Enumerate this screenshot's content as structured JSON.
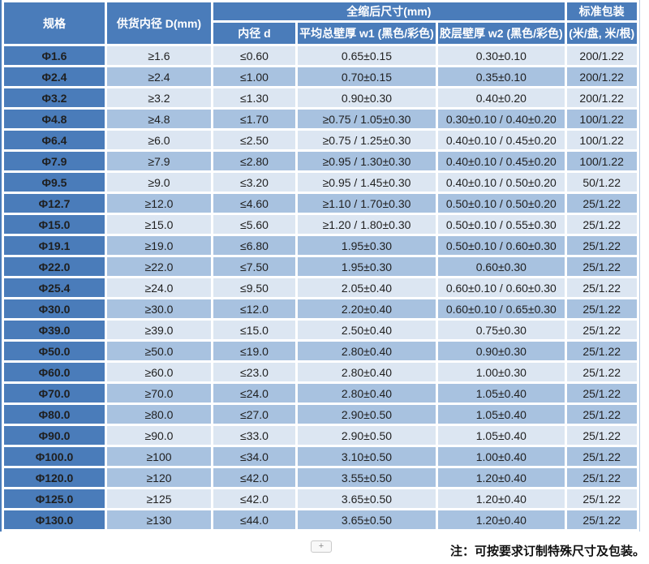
{
  "colors": {
    "header_blue": "#4a7cba",
    "spec_column_blue": "#4a7cba",
    "row_light": "#dce6f2",
    "row_medium": "#a8c2e0",
    "header_text": "#ffffff",
    "data_text": "#1f1f1f"
  },
  "table": {
    "headers": {
      "spec": "规格",
      "supply_diameter": "供货内径 D(mm)",
      "shrunk_group": "全缩后尺寸(mm)",
      "inner_diameter": "内径 d",
      "avg_wall": "平均总壁厚 w1 (黑色/彩色)",
      "adhesive_wall": "胶层壁厚 w2 (黑色/彩色)",
      "packaging": "标准包装",
      "packaging_unit": "(米/盘, 米/根)"
    },
    "rows": [
      {
        "spec": "Φ1.6",
        "supply": "≥1.6",
        "inner": "≤0.60",
        "wall_w1": "0.65±0.15",
        "wall_w2": "0.30±0.10",
        "packaging": "200/1.22",
        "shade": "light"
      },
      {
        "spec": "Φ2.4",
        "supply": "≥2.4",
        "inner": "≤1.00",
        "wall_w1": "0.70±0.15",
        "wall_w2": "0.35±0.10",
        "packaging": "200/1.22",
        "shade": "medium"
      },
      {
        "spec": "Φ3.2",
        "supply": "≥3.2",
        "inner": "≤1.30",
        "wall_w1": "0.90±0.30",
        "wall_w2": "0.40±0.20",
        "packaging": "200/1.22",
        "shade": "light"
      },
      {
        "spec": "Φ4.8",
        "supply": "≥4.8",
        "inner": "≤1.70",
        "wall_w1": "≥0.75 / 1.05±0.30",
        "wall_w2": "0.30±0.10 / 0.40±0.20",
        "packaging": "100/1.22",
        "shade": "medium"
      },
      {
        "spec": "Φ6.4",
        "supply": "≥6.0",
        "inner": "≤2.50",
        "wall_w1": "≥0.75 / 1.25±0.30",
        "wall_w2": "0.40±0.10 / 0.45±0.20",
        "packaging": "100/1.22",
        "shade": "light"
      },
      {
        "spec": "Φ7.9",
        "supply": "≥7.9",
        "inner": "≤2.80",
        "wall_w1": "≥0.95 / 1.30±0.30",
        "wall_w2": "0.40±0.10 / 0.45±0.20",
        "packaging": "100/1.22",
        "shade": "medium"
      },
      {
        "spec": "Φ9.5",
        "supply": "≥9.0",
        "inner": "≤3.20",
        "wall_w1": "≥0.95 / 1.45±0.30",
        "wall_w2": "0.40±0.10 / 0.50±0.20",
        "packaging": "50/1.22",
        "shade": "light"
      },
      {
        "spec": "Φ12.7",
        "supply": "≥12.0",
        "inner": "≤4.60",
        "wall_w1": "≥1.10 / 1.70±0.30",
        "wall_w2": "0.50±0.10 / 0.50±0.20",
        "packaging": "25/1.22",
        "shade": "medium"
      },
      {
        "spec": "Φ15.0",
        "supply": "≥15.0",
        "inner": "≤5.60",
        "wall_w1": "≥1.20 / 1.80±0.30",
        "wall_w2": "0.50±0.10 / 0.55±0.30",
        "packaging": "25/1.22",
        "shade": "light"
      },
      {
        "spec": "Φ19.1",
        "supply": "≥19.0",
        "inner": "≤6.80",
        "wall_w1": "1.95±0.30",
        "wall_w2": "0.50±0.10 / 0.60±0.30",
        "packaging": "25/1.22",
        "shade": "medium"
      },
      {
        "spec": "Φ22.0",
        "supply": "≥22.0",
        "inner": "≤7.50",
        "wall_w1": "1.95±0.30",
        "wall_w2": "0.60±0.30",
        "packaging": "25/1.22",
        "shade": "medium"
      },
      {
        "spec": "Φ25.4",
        "supply": "≥24.0",
        "inner": "≤9.50",
        "wall_w1": "2.05±0.40",
        "wall_w2": "0.60±0.10 / 0.60±0.30",
        "packaging": "25/1.22",
        "shade": "light"
      },
      {
        "spec": "Φ30.0",
        "supply": "≥30.0",
        "inner": "≤12.0",
        "wall_w1": "2.20±0.40",
        "wall_w2": "0.60±0.10 / 0.65±0.30",
        "packaging": "25/1.22",
        "shade": "medium"
      },
      {
        "spec": "Φ39.0",
        "supply": "≥39.0",
        "inner": "≤15.0",
        "wall_w1": "2.50±0.40",
        "wall_w2": "0.75±0.30",
        "packaging": "25/1.22",
        "shade": "light"
      },
      {
        "spec": "Φ50.0",
        "supply": "≥50.0",
        "inner": "≤19.0",
        "wall_w1": "2.80±0.40",
        "wall_w2": "0.90±0.30",
        "packaging": "25/1.22",
        "shade": "medium"
      },
      {
        "spec": "Φ60.0",
        "supply": "≥60.0",
        "inner": "≤23.0",
        "wall_w1": "2.80±0.40",
        "wall_w2": "1.00±0.30",
        "packaging": "25/1.22",
        "shade": "light"
      },
      {
        "spec": "Φ70.0",
        "supply": "≥70.0",
        "inner": "≤24.0",
        "wall_w1": "2.80±0.40",
        "wall_w2": "1.05±0.40",
        "packaging": "25/1.22",
        "shade": "medium"
      },
      {
        "spec": "Φ80.0",
        "supply": "≥80.0",
        "inner": "≤27.0",
        "wall_w1": "2.90±0.50",
        "wall_w2": "1.05±0.40",
        "packaging": "25/1.22",
        "shade": "medium"
      },
      {
        "spec": "Φ90.0",
        "supply": "≥90.0",
        "inner": "≤33.0",
        "wall_w1": "2.90±0.50",
        "wall_w2": "1.05±0.40",
        "packaging": "25/1.22",
        "shade": "light"
      },
      {
        "spec": "Φ100.0",
        "supply": "≥100",
        "inner": "≤34.0",
        "wall_w1": "3.10±0.50",
        "wall_w2": "1.00±0.40",
        "packaging": "25/1.22",
        "shade": "medium"
      },
      {
        "spec": "Φ120.0",
        "supply": "≥120",
        "inner": "≤42.0",
        "wall_w1": "3.55±0.50",
        "wall_w2": "1.20±0.40",
        "packaging": "25/1.22",
        "shade": "medium"
      },
      {
        "spec": "Φ125.0",
        "supply": "≥125",
        "inner": "≤42.0",
        "wall_w1": "3.65±0.50",
        "wall_w2": "1.20±0.40",
        "packaging": "25/1.22",
        "shade": "light"
      },
      {
        "spec": "Φ130.0",
        "supply": "≥130",
        "inner": "≤44.0",
        "wall_w1": "3.65±0.50",
        "wall_w2": "1.20±0.40",
        "packaging": "25/1.22",
        "shade": "medium"
      }
    ]
  },
  "footer": {
    "expand_button": "+",
    "note": "注：可按要求订制特殊尺寸及包装。"
  }
}
